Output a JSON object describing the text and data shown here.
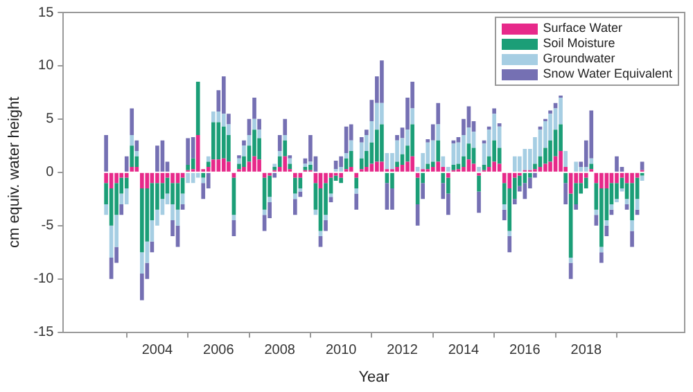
{
  "chart_data": {
    "type": "bar",
    "stacked": true,
    "xlabel": "Year",
    "ylabel": "cm equiv. water height",
    "x": [
      2002.33,
      2002.5,
      2002.67,
      2002.83,
      2003.0,
      2003.17,
      2003.33,
      2003.5,
      2003.67,
      2003.83,
      2004.0,
      2004.17,
      2004.33,
      2004.5,
      2004.67,
      2004.83,
      2005.0,
      2005.17,
      2005.33,
      2005.5,
      2005.67,
      2005.83,
      2006.0,
      2006.17,
      2006.33,
      2006.5,
      2006.67,
      2006.83,
      2007.0,
      2007.17,
      2007.33,
      2007.5,
      2007.67,
      2007.83,
      2008.0,
      2008.17,
      2008.33,
      2008.5,
      2008.67,
      2008.83,
      2009.0,
      2009.17,
      2009.33,
      2009.5,
      2009.67,
      2009.83,
      2010.0,
      2010.17,
      2010.33,
      2010.5,
      2010.67,
      2010.83,
      2011.0,
      2011.17,
      2011.33,
      2011.5,
      2011.67,
      2011.83,
      2012.0,
      2012.17,
      2012.33,
      2012.5,
      2012.67,
      2012.83,
      2013.0,
      2013.17,
      2013.33,
      2013.5,
      2013.67,
      2013.83,
      2014.0,
      2014.17,
      2014.33,
      2014.5,
      2014.67,
      2014.83,
      2015.0,
      2015.17,
      2015.33,
      2015.5,
      2015.67,
      2015.83,
      2016.0,
      2016.17,
      2016.33,
      2016.5,
      2016.67,
      2016.83,
      2017.0,
      2017.17,
      2017.33,
      2017.5,
      2017.67,
      2017.83,
      2018.0,
      2018.17,
      2018.33,
      2018.5,
      2018.67,
      2018.83,
      2019.0,
      2019.17,
      2019.33,
      2019.5,
      2019.67,
      2019.83
    ],
    "series": [
      {
        "name": "Surface Water",
        "color": "#e7298a",
        "values": [
          -1,
          -1.5,
          -1,
          -0.5,
          -0.5,
          0.5,
          0.5,
          -1.5,
          -1.5,
          -1,
          -1,
          -1,
          -0.5,
          -1,
          -1,
          -0.5,
          0.2,
          0.3,
          3.5,
          0.3,
          0.5,
          1.2,
          1.2,
          1.3,
          1,
          -0.5,
          0.3,
          0.5,
          1,
          1.5,
          1.2,
          -0.5,
          -0.3,
          0.2,
          0.5,
          1.5,
          0.3,
          -0.5,
          -0.5,
          0.2,
          0.2,
          -1,
          -1.5,
          -1,
          -0.5,
          -0.3,
          -0.5,
          0.3,
          0.5,
          -0.5,
          0.3,
          0.5,
          0.8,
          1,
          1,
          0.3,
          0.3,
          0.5,
          0.7,
          1,
          1.5,
          -0.5,
          0.3,
          0.3,
          0.5,
          1,
          0.5,
          -0.5,
          0.2,
          0.3,
          0.5,
          1.2,
          0.8,
          -0.3,
          0.2,
          0.5,
          1,
          0.8,
          -1,
          -1.5,
          -0.5,
          -0.3,
          0.2,
          0.2,
          0.3,
          0.5,
          0.8,
          1,
          1.5,
          2,
          0.5,
          -2,
          -1,
          -1,
          -0.5,
          0.3,
          -1,
          -1.5,
          -1.5,
          -1,
          -1,
          -0.5,
          -1,
          -1,
          -0.5,
          0.2
        ]
      },
      {
        "name": "Soil Moisture",
        "color": "#1b9e77",
        "values": [
          -2,
          -3.5,
          -3,
          -1.5,
          -1,
          2,
          1,
          -6,
          -5,
          -3.5,
          -2.5,
          -1.5,
          -1.5,
          -2,
          -2.5,
          -1.5,
          0.5,
          1,
          5,
          -0.5,
          0.5,
          3.5,
          3.5,
          3,
          2.5,
          -3.5,
          0.5,
          1,
          1.5,
          2.5,
          2,
          -3,
          -2,
          0.3,
          1,
          1.5,
          0.5,
          -1.5,
          -1,
          0.3,
          0.5,
          -2.5,
          -4,
          -3,
          -1.5,
          -0.5,
          -0.5,
          1,
          1.5,
          -1,
          1,
          1.5,
          2,
          3,
          3.5,
          -1,
          -1.5,
          0.5,
          1,
          1.5,
          3,
          -2.5,
          -1,
          0.5,
          0.5,
          2,
          -1,
          -1.5,
          0.5,
          0.5,
          1,
          1.5,
          1.5,
          -1.5,
          0.5,
          1,
          2,
          1.5,
          -2,
          -4,
          -2,
          -1,
          -1,
          -0.5,
          0.5,
          1,
          1.5,
          2,
          2.5,
          2.5,
          -1,
          -6,
          -2,
          -1,
          -1,
          0.5,
          -2.5,
          -5.5,
          -3,
          -2,
          -1.5,
          -1,
          -1.5,
          -3.5,
          -2,
          -0.3
        ]
      },
      {
        "name": "Groundwater",
        "color": "#a6cee3",
        "values": [
          -1,
          -3,
          -3,
          -1,
          -1.5,
          1,
          0.5,
          -2,
          -2,
          -2,
          -1.5,
          -1.5,
          -1,
          -1.5,
          -1.5,
          -1,
          -1,
          -1,
          -0.5,
          -0.5,
          0.5,
          1,
          1,
          1.2,
          1,
          -0.5,
          0.5,
          1,
          1,
          1,
          0.8,
          -0.5,
          -0.5,
          0.3,
          0.5,
          0.5,
          0.5,
          -0.5,
          -0.3,
          0.3,
          0.3,
          -0.5,
          -0.5,
          -0.5,
          -0.3,
          0.3,
          0.5,
          0.5,
          1,
          -0.5,
          1.5,
          1.5,
          2,
          2.5,
          2,
          1.5,
          1.5,
          2,
          1.5,
          1.5,
          1.5,
          0.5,
          1.5,
          2,
          2,
          1.5,
          1,
          0.5,
          2,
          2,
          2,
          1.5,
          1.5,
          0.5,
          2,
          2.5,
          2.5,
          2,
          -0.5,
          -0.5,
          1.5,
          1.5,
          2,
          2,
          2.5,
          2.5,
          2.5,
          2.5,
          2,
          2.5,
          1.5,
          -0.5,
          1,
          0.5,
          0.5,
          0.5,
          -0.5,
          -0.5,
          -0.5,
          -0.5,
          -0.3,
          -0.3,
          -0.5,
          -1,
          -1,
          -0.5
        ]
      },
      {
        "name": "Snow Water Equivalent",
        "color": "#7570b3",
        "values": [
          3.5,
          -2,
          -1.5,
          -1,
          1.5,
          2.5,
          1,
          -2.5,
          -1.5,
          -1,
          2.5,
          3,
          1,
          -1.5,
          -2,
          -0.5,
          2.5,
          2,
          0,
          -1.5,
          -1.5,
          0,
          2,
          3.5,
          1,
          -1.5,
          0.3,
          0.5,
          1.5,
          2,
          1,
          -1.5,
          -1.5,
          -0.5,
          1.5,
          1.5,
          0.3,
          -1.5,
          -0.5,
          0.5,
          2.5,
          1.5,
          -1,
          -1,
          -0.5,
          0.8,
          1,
          2.5,
          1.5,
          -1.5,
          0.5,
          0.5,
          2,
          2.5,
          4,
          -2.5,
          -2,
          0.5,
          1,
          3,
          2.5,
          -2,
          -1.5,
          0.3,
          1.5,
          2,
          -1.5,
          -2,
          0.3,
          0.5,
          1.5,
          2,
          1,
          -2,
          0.3,
          0.3,
          0.5,
          0.3,
          -1,
          -1.5,
          -0.5,
          -0.5,
          -1.5,
          -1,
          -0.5,
          0.3,
          0.2,
          0.3,
          0.5,
          0.2,
          -2,
          -1.5,
          -0.5,
          0.5,
          2.5,
          4.5,
          -1,
          -1,
          -1,
          -0.5,
          1.5,
          0.5,
          -0.5,
          -1.5,
          -0.5,
          0.8
        ]
      }
    ],
    "xlim": [
      2002.2,
      2019.95
    ],
    "xticks": [
      2004,
      2006,
      2008,
      2010,
      2012,
      2014,
      2016,
      2018
    ],
    "ylim": [
      -15,
      15
    ],
    "yticks": [
      -15,
      -10,
      -5,
      0,
      5,
      10,
      15
    ],
    "legend": "top right"
  }
}
